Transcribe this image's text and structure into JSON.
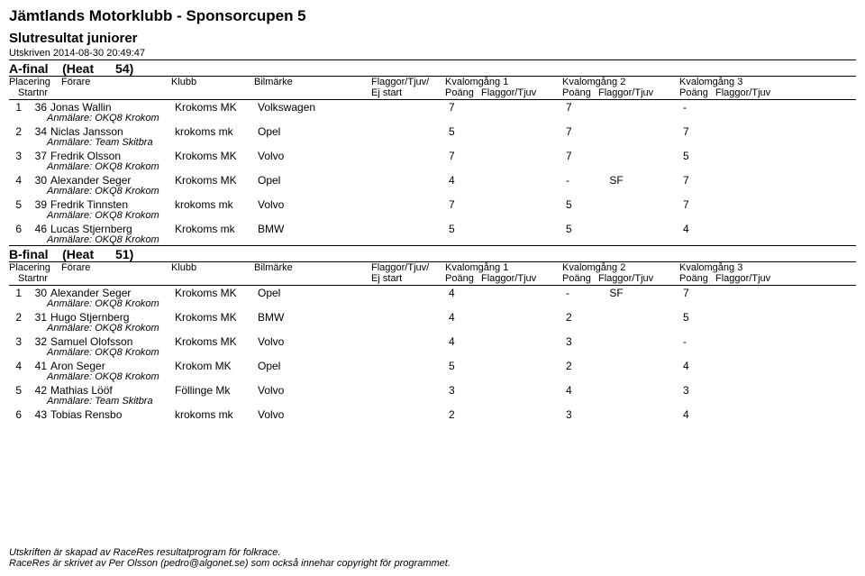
{
  "header": {
    "title": "Jämtlands Motorklubb - Sponsorcupen 5",
    "subtitle": "Slutresultat   juniorer",
    "printed": "Utskriven 2014-08-30 20:49:47"
  },
  "columns": {
    "placering": "Placering",
    "startnr": "Startnr",
    "forare": "Förare",
    "klubb": "Klubb",
    "bilmarke": "Bilmärke",
    "flaggor": "Flaggor/Tjuv/",
    "ejstart": "Ej start",
    "kval1": "Kvalomgång 1",
    "kval2": "Kvalomgång 2",
    "kval3": "Kvalomgång 3",
    "poang": "Poäng",
    "flaggor_tjuv": "Flaggor/Tjuv"
  },
  "heats": [
    {
      "name": "A-final",
      "heat_label": "(Heat",
      "heat_no": "54)",
      "rows": [
        {
          "pl": "1",
          "nr": "36",
          "name": "Jonas Wallin",
          "klubb": "Krokoms MK",
          "bil": "Volkswagen",
          "anm": "Anmälare: OKQ8 Krokom",
          "k1": {
            "p": "7"
          },
          "k2": {
            "p": "7"
          },
          "k3": {
            "p": "-"
          }
        },
        {
          "pl": "2",
          "nr": "34",
          "name": "Niclas Jansson",
          "klubb": "krokoms mk",
          "bil": "Opel",
          "anm": "Anmälare: Team Skitbra",
          "k1": {
            "p": "5"
          },
          "k2": {
            "p": "7"
          },
          "k3": {
            "p": "7"
          }
        },
        {
          "pl": "3",
          "nr": "37",
          "name": "Fredrik Olsson",
          "klubb": "Krokoms MK",
          "bil": "Volvo",
          "anm": "Anmälare: OKQ8 Krokom",
          "k1": {
            "p": "7"
          },
          "k2": {
            "p": "7"
          },
          "k3": {
            "p": "5"
          }
        },
        {
          "pl": "4",
          "nr": "30",
          "name": "Alexander Seger",
          "klubb": "Krokoms MK",
          "bil": "Opel",
          "anm": "Anmälare: OKQ8 Krokom",
          "k1": {
            "p": "4"
          },
          "k2": {
            "p": "-",
            "ft": "SF"
          },
          "k3": {
            "p": "7"
          }
        },
        {
          "pl": "5",
          "nr": "39",
          "name": "Fredrik Tinnsten",
          "klubb": "krokoms mk",
          "bil": "Volvo",
          "anm": "Anmälare: OKQ8 Krokom",
          "k1": {
            "p": "7"
          },
          "k2": {
            "p": "5"
          },
          "k3": {
            "p": "7"
          }
        },
        {
          "pl": "6",
          "nr": "46",
          "name": "Lucas Stjernberg",
          "klubb": "Krokoms mk",
          "bil": "BMW",
          "anm": "Anmälare: OKQ8 Krokom",
          "k1": {
            "p": "5"
          },
          "k2": {
            "p": "5"
          },
          "k3": {
            "p": "4"
          }
        }
      ]
    },
    {
      "name": "B-final",
      "heat_label": "(Heat",
      "heat_no": "51)",
      "rows": [
        {
          "pl": "1",
          "nr": "30",
          "name": "Alexander Seger",
          "klubb": "Krokoms MK",
          "bil": "Opel",
          "anm": "Anmälare: OKQ8 Krokom",
          "k1": {
            "p": "4"
          },
          "k2": {
            "p": "-",
            "ft": "SF"
          },
          "k3": {
            "p": "7"
          }
        },
        {
          "pl": "2",
          "nr": "31",
          "name": "Hugo Stjernberg",
          "klubb": "Krokoms MK",
          "bil": "BMW",
          "anm": "Anmälare: OKQ8 Krokom",
          "k1": {
            "p": "4"
          },
          "k2": {
            "p": "2"
          },
          "k3": {
            "p": "5"
          }
        },
        {
          "pl": "3",
          "nr": "32",
          "name": "Samuel Olofsson",
          "klubb": "Krokoms MK",
          "bil": "Volvo",
          "anm": "Anmälare: OKQ8 Krokom",
          "k1": {
            "p": "4"
          },
          "k2": {
            "p": "3"
          },
          "k3": {
            "p": "-"
          }
        },
        {
          "pl": "4",
          "nr": "41",
          "name": "Aron Seger",
          "klubb": "Krokom MK",
          "bil": "Opel",
          "anm": "Anmälare: OKQ8 Krokom",
          "k1": {
            "p": "5"
          },
          "k2": {
            "p": "2"
          },
          "k3": {
            "p": "4"
          }
        },
        {
          "pl": "5",
          "nr": "42",
          "name": "Mathias Lööf",
          "klubb": "Föllinge Mk",
          "bil": "Volvo",
          "anm": "Anmälare: Team Skitbra",
          "k1": {
            "p": "3"
          },
          "k2": {
            "p": "4"
          },
          "k3": {
            "p": "3"
          }
        },
        {
          "pl": "6",
          "nr": "43",
          "name": "Tobias Rensbo",
          "klubb": "krokoms mk",
          "bil": "Volvo",
          "anm": "",
          "k1": {
            "p": "2"
          },
          "k2": {
            "p": "3"
          },
          "k3": {
            "p": "4"
          }
        }
      ]
    }
  ],
  "footer": {
    "line1": "Utskriften är skapad av RaceRes resultatprogram för folkrace.",
    "line2": "RaceRes är skrivet av Per Olsson (pedro@algonet.se) som också innehar copyright för programmet."
  }
}
